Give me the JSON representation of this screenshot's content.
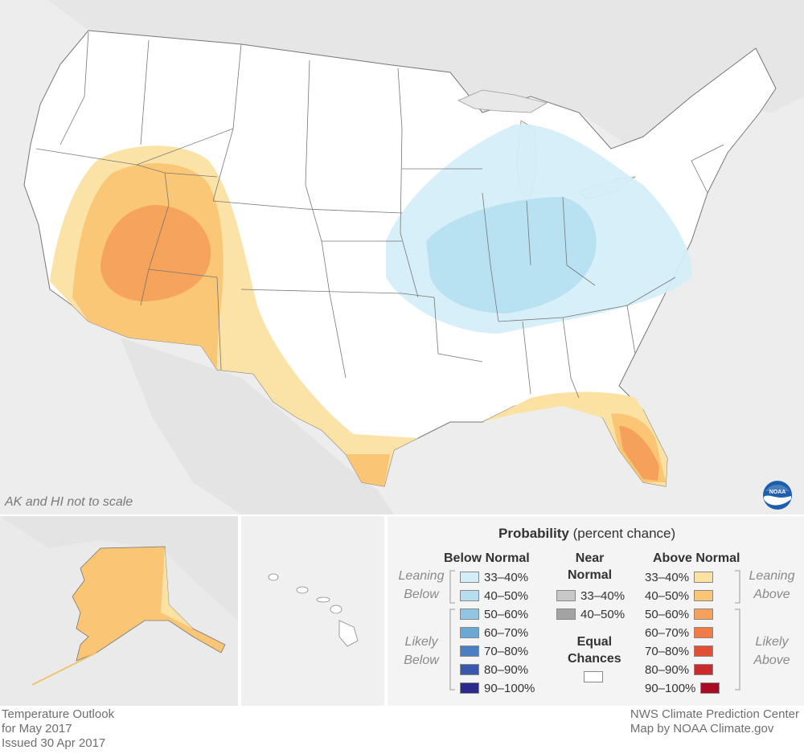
{
  "map": {
    "scale_note": "AK and HI not to scale",
    "logo_text": "NOAA"
  },
  "footer": {
    "left": [
      "Temperature Outlook",
      "for May 2017",
      "Issued 30 Apr 2017"
    ],
    "right": [
      "NWS Climate Prediction Center",
      "Map by NOAA Climate.gov"
    ]
  },
  "legend": {
    "title_bold": "Probability",
    "title_rest": " (percent chance)",
    "below": {
      "heading": "Below Normal",
      "leaning": [
        "Leaning",
        "Below"
      ],
      "likely": [
        "Likely",
        "Below"
      ],
      "rows": [
        {
          "label": "33–40%",
          "color": "#d4eef7"
        },
        {
          "label": "40–50%",
          "color": "#b5dff0"
        },
        {
          "label": "50–60%",
          "color": "#90c6e3"
        },
        {
          "label": "60–70%",
          "color": "#6aa8d6"
        },
        {
          "label": "70–80%",
          "color": "#4a7fc4"
        },
        {
          "label": "80–90%",
          "color": "#3a57ae"
        },
        {
          "label": "90–100%",
          "color": "#2a2a8e"
        }
      ]
    },
    "near": {
      "heading": [
        "Near",
        "Normal"
      ],
      "rows": [
        {
          "label": "33–40%",
          "color": "#c8c8c8"
        },
        {
          "label": "40–50%",
          "color": "#a3a3a3"
        }
      ],
      "equal_heading": [
        "Equal",
        "Chances"
      ],
      "equal_color": "#ffffff"
    },
    "above": {
      "heading": "Above Normal",
      "leaning": [
        "Leaning",
        "Above"
      ],
      "likely": [
        "Likely",
        "Above"
      ],
      "rows": [
        {
          "label": "33–40%",
          "color": "#fbe2a3"
        },
        {
          "label": "40–50%",
          "color": "#fac574"
        },
        {
          "label": "50–60%",
          "color": "#f6a15a"
        },
        {
          "label": "60–70%",
          "color": "#f27b45"
        },
        {
          "label": "70–80%",
          "color": "#e14f35"
        },
        {
          "label": "80–90%",
          "color": "#cb2a2c"
        },
        {
          "label": "90–100%",
          "color": "#a90a25"
        }
      ]
    }
  }
}
